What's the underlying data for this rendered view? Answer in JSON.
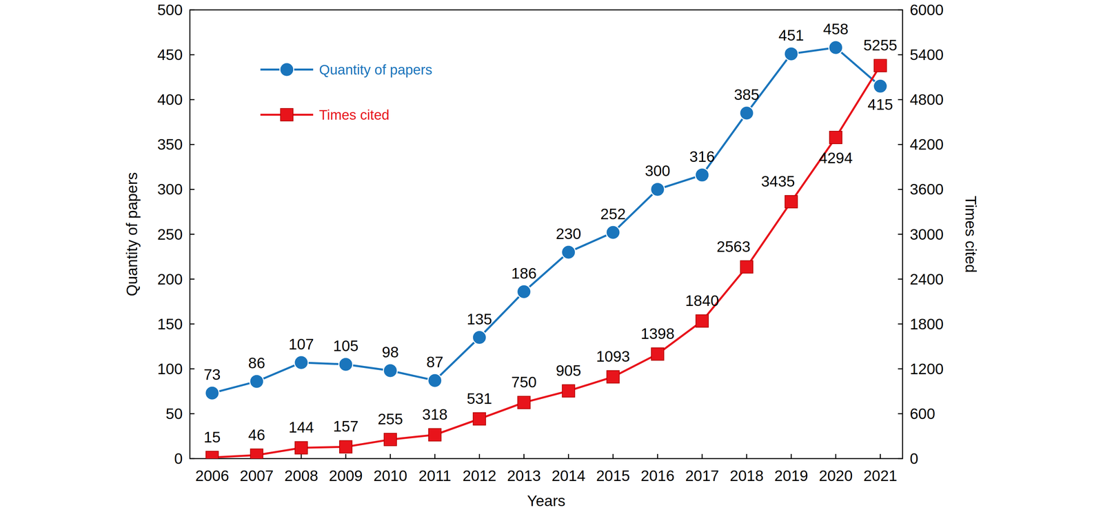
{
  "chart_data": {
    "type": "line",
    "x_label": "Years",
    "y_label": "Quantity of papers",
    "y2_label": "Times cited",
    "categories": [
      "2006",
      "2007",
      "2008",
      "2009",
      "2010",
      "2011",
      "2012",
      "2013",
      "2014",
      "2015",
      "2016",
      "2017",
      "2018",
      "2019",
      "2020",
      "2021"
    ],
    "series": [
      {
        "name": "Quantity of papers",
        "color": "#1a75bc",
        "marker": "circle",
        "axis": "y",
        "values": [
          73,
          86,
          107,
          105,
          98,
          87,
          135,
          186,
          230,
          252,
          300,
          316,
          385,
          451,
          458,
          415
        ]
      },
      {
        "name": "Times cited",
        "color": "#e8141b",
        "marker": "square",
        "axis": "y2",
        "values": [
          15,
          46,
          144,
          157,
          255,
          318,
          531,
          750,
          905,
          1093,
          1398,
          1840,
          2563,
          3435,
          4294,
          5255
        ]
      }
    ],
    "ylim": [
      0,
      500
    ],
    "yticks": [
      0,
      50,
      100,
      150,
      200,
      250,
      300,
      350,
      400,
      450,
      500
    ],
    "y2lim": [
      0,
      6000
    ],
    "y2ticks": [
      0,
      600,
      1200,
      1800,
      2400,
      3000,
      3600,
      4200,
      4800,
      5400,
      6000
    ],
    "data_labels": true,
    "legend": "upper left",
    "grid": false
  }
}
